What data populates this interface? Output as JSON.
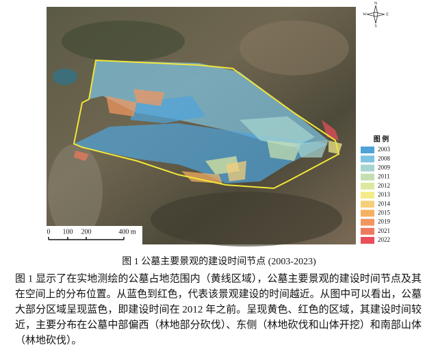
{
  "figure": {
    "compass": [
      "N",
      "W",
      "E",
      "S"
    ],
    "scale_bar": {
      "labels": [
        "0",
        "100",
        "200",
        "400 m"
      ]
    },
    "legend": {
      "title": "图 例",
      "items": [
        {
          "label": "2003",
          "color": "#4fa3d9"
        },
        {
          "label": "2008",
          "color": "#7ec3e0"
        },
        {
          "label": "2009",
          "color": "#a6d4cf"
        },
        {
          "label": "2011",
          "color": "#c6dfb0"
        },
        {
          "label": "2012",
          "color": "#dde8a0"
        },
        {
          "label": "2013",
          "color": "#f3ec8a"
        },
        {
          "label": "2014",
          "color": "#f7cf78"
        },
        {
          "label": "2015",
          "color": "#f5b060"
        },
        {
          "label": "2019",
          "color": "#f29660"
        },
        {
          "label": "2021",
          "color": "#ee7a5e"
        },
        {
          "label": "2022",
          "color": "#e84f5a"
        }
      ]
    },
    "caption": "图 1  公墓主要景观的建设时间节点 (2003-2023)"
  },
  "paragraph": [
    "图 1 显示了在实地测绘的公墓占地范围内（黄线区域），公墓主要景观的建设时间节点及其",
    "在空间上的分布位置。从蓝色到红色，代表该景观建设的时间越近。从图中可以看出，公墓",
    "大部分区域呈现蓝色，即建设时间在 2012 年之前。呈现黄色、红色的区域，其建设时间较",
    "近，主要分布在公墓中部偏西（林地部分砍伐）、东侧（林地砍伐和山体开挖）和南部山体",
    "（林地砍伐）。"
  ]
}
